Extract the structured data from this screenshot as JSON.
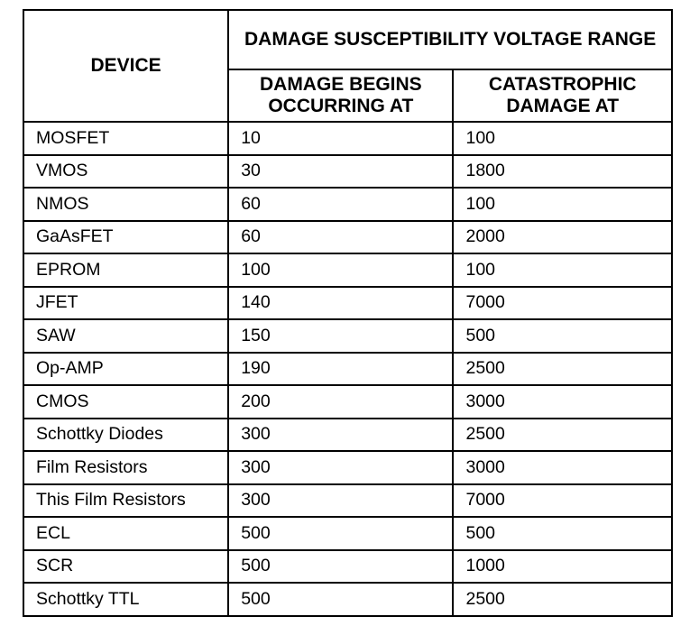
{
  "table": {
    "header": {
      "device": "DEVICE",
      "group": "DAMAGE SUSCEPTIBILITY VOLTAGE RANGE",
      "begins": "DAMAGE BEGINS OCCURRING AT",
      "catastrophic": "CATASTROPHIC DAMAGE AT"
    },
    "rows": [
      {
        "device": "MOSFET",
        "begins": "10",
        "catastrophic": "100"
      },
      {
        "device": "VMOS",
        "begins": "30",
        "catastrophic": "1800"
      },
      {
        "device": "NMOS",
        "begins": "60",
        "catastrophic": "100"
      },
      {
        "device": "GaAsFET",
        "begins": "60",
        "catastrophic": "2000"
      },
      {
        "device": "EPROM",
        "begins": "100",
        "catastrophic": "100"
      },
      {
        "device": "JFET",
        "begins": "140",
        "catastrophic": "7000"
      },
      {
        "device": "SAW",
        "begins": "150",
        "catastrophic": "500"
      },
      {
        "device": "Op-AMP",
        "begins": "190",
        "catastrophic": "2500"
      },
      {
        "device": "CMOS",
        "begins": "200",
        "catastrophic": "3000"
      },
      {
        "device": "Schottky Diodes",
        "begins": "300",
        "catastrophic": "2500"
      },
      {
        "device": "Film Resistors",
        "begins": "300",
        "catastrophic": "3000"
      },
      {
        "device": "This Film Resistors",
        "begins": "300",
        "catastrophic": "7000"
      },
      {
        "device": "ECL",
        "begins": "500",
        "catastrophic": "500"
      },
      {
        "device": "SCR",
        "begins": "500",
        "catastrophic": "1000"
      },
      {
        "device": "Schottky TTL",
        "begins": "500",
        "catastrophic": "2500"
      }
    ]
  }
}
